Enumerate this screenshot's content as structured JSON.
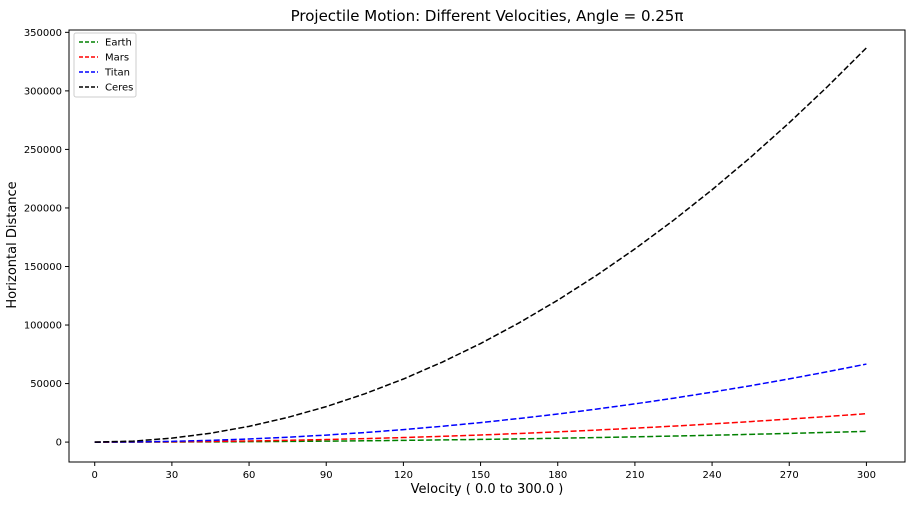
{
  "chart_data": {
    "type": "line",
    "title": "Projectile Motion: Different Velocities, Angle = 0.25π",
    "xlabel": "Velocity ( 0.0 to 300.0 )",
    "ylabel": "Horizontal Distance",
    "xlim": [
      -10,
      315
    ],
    "ylim": [
      -17000,
      352000
    ],
    "xticks": [
      0,
      30,
      60,
      90,
      120,
      150,
      180,
      210,
      240,
      270,
      300
    ],
    "yticks": [
      0,
      50000,
      100000,
      150000,
      200000,
      250000,
      300000,
      350000
    ],
    "grid": false,
    "legend_position": "top-left",
    "line_style": "dashed",
    "x": [
      0,
      15,
      30,
      45,
      60,
      75,
      90,
      105,
      120,
      135,
      150,
      165,
      180,
      195,
      210,
      225,
      240,
      255,
      270,
      285,
      300
    ],
    "series": [
      {
        "name": "Earth",
        "color": "#008000",
        "values": [
          0,
          23,
          92,
          206,
          367,
          574,
          826,
          1124,
          1468,
          1858,
          2294,
          2776,
          3304,
          3877,
          4497,
          5162,
          5873,
          6630,
          7433,
          8282,
          9177
        ]
      },
      {
        "name": "Mars",
        "color": "#ff0000",
        "values": [
          0,
          61,
          243,
          546,
          971,
          1517,
          2184,
          2973,
          3883,
          4914,
          6067,
          7341,
          8736,
          10253,
          11891,
          13650,
          15531,
          17533,
          19656,
          21901,
          24267
        ]
      },
      {
        "name": "Titan",
        "color": "#0000ff",
        "values": [
          0,
          167,
          667,
          1500,
          2667,
          4167,
          6000,
          8167,
          10667,
          13500,
          16667,
          20167,
          24000,
          28167,
          32667,
          37500,
          42667,
          48167,
          54000,
          60167,
          66667
        ]
      },
      {
        "name": "Ceres",
        "color": "#000000",
        "values": [
          0,
          842,
          3368,
          7577,
          13471,
          21049,
          30310,
          41255,
          53884,
          68197,
          84194,
          101875,
          121240,
          142288,
          165021,
          189437,
          215537,
          243321,
          272789,
          303941,
          336776
        ]
      }
    ]
  }
}
